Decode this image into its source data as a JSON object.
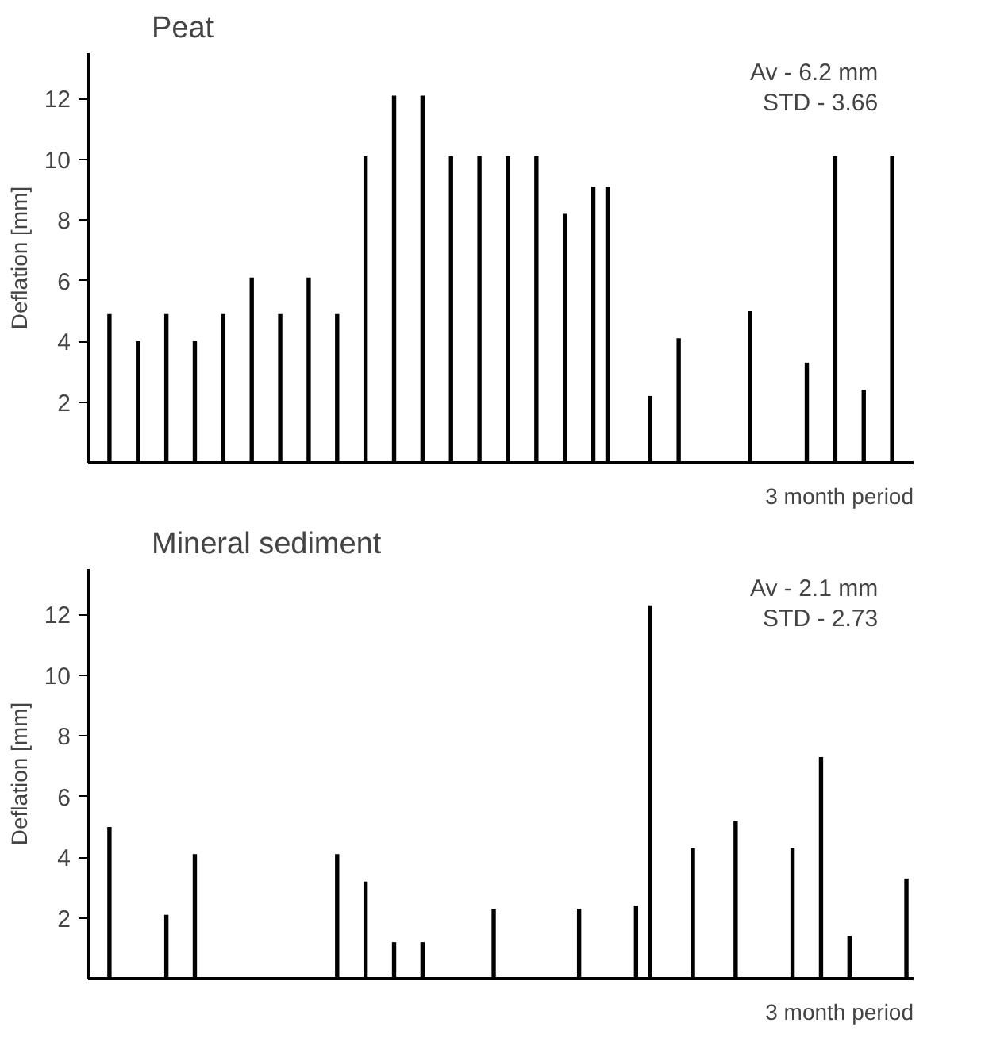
{
  "chart_data": [
    {
      "type": "bar",
      "title": "Peat",
      "xlabel": "3 month period",
      "ylabel": "Deflation [mm]",
      "annotations": [
        "Av - 6.2 mm",
        "STD - 3.66"
      ],
      "categories": [
        null,
        null,
        null,
        null,
        null,
        null,
        null,
        null,
        null,
        null,
        null,
        null,
        null,
        null,
        null,
        null,
        null,
        null,
        null,
        null,
        null,
        null,
        null,
        null,
        null,
        null,
        null,
        null,
        null,
        null,
        null,
        null,
        null,
        null,
        null,
        null,
        null,
        null,
        null,
        null,
        null,
        null,
        null,
        null,
        null,
        null,
        null,
        null,
        null,
        null,
        null,
        null,
        null,
        null,
        null,
        null,
        null,
        null
      ],
      "values": [
        null,
        4.9,
        null,
        4,
        null,
        4.9,
        null,
        4,
        null,
        4.9,
        null,
        6.1,
        null,
        4.9,
        null,
        6.1,
        null,
        4.9,
        null,
        10.1,
        null,
        12.1,
        null,
        12.1,
        null,
        10.1,
        null,
        10.1,
        null,
        10.1,
        null,
        10.1,
        null,
        8.2,
        null,
        9.1,
        9.1,
        null,
        null,
        2.2,
        null,
        4.1,
        null,
        null,
        null,
        null,
        5,
        null,
        null,
        null,
        3.3,
        null,
        10.1,
        null,
        2.4,
        null,
        10.1,
        null
      ],
      "color": "#000000",
      "ylim": [
        0,
        13.5
      ],
      "yticks": [
        2,
        4,
        6,
        8,
        10,
        12
      ],
      "grid": false,
      "tick_labels": "y"
    },
    {
      "type": "bar",
      "title": "Mineral sediment",
      "xlabel": "3 month period",
      "ylabel": "Deflation [mm]",
      "annotations": [
        "Av - 2.1 mm",
        "STD - 2.73"
      ],
      "categories": [
        null,
        null,
        null,
        null,
        null,
        null,
        null,
        null,
        null,
        null,
        null,
        null,
        null,
        null,
        null,
        null,
        null,
        null,
        null,
        null,
        null,
        null,
        null,
        null,
        null,
        null,
        null,
        null,
        null,
        null,
        null,
        null,
        null,
        null,
        null,
        null,
        null,
        null,
        null,
        null,
        null,
        null,
        null,
        null,
        null,
        null,
        null,
        null,
        null,
        null,
        null,
        null,
        null,
        null,
        null,
        null,
        null,
        null
      ],
      "values": [
        null,
        5,
        null,
        null,
        null,
        2.1,
        null,
        4.1,
        null,
        null,
        null,
        null,
        null,
        null,
        null,
        null,
        null,
        4.1,
        null,
        3.2,
        null,
        1.2,
        null,
        1.2,
        null,
        null,
        null,
        null,
        2.3,
        null,
        null,
        null,
        null,
        null,
        2.3,
        null,
        null,
        null,
        2.4,
        12.3,
        null,
        null,
        4.3,
        null,
        null,
        5.2,
        null,
        null,
        null,
        4.3,
        null,
        7.3,
        null,
        1.4,
        null,
        null,
        null,
        3.3
      ],
      "color": "#000000",
      "ylim": [
        0,
        13.5
      ],
      "yticks": [
        2,
        4,
        6,
        8,
        10,
        12
      ],
      "grid": false,
      "tick_labels": "y"
    }
  ]
}
